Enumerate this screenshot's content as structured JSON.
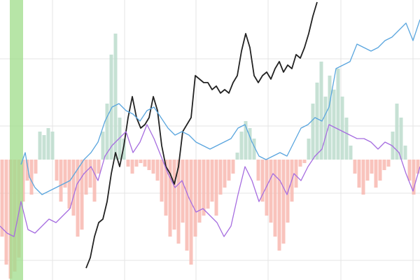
{
  "chart_data": {
    "type": "bar-line",
    "xlim": [
      0,
      600
    ],
    "ylim": [
      -172,
      228
    ],
    "xticks": [
      75,
      178,
      280,
      383,
      487,
      590
    ],
    "yticks": [
      -144,
      -48,
      48,
      144
    ],
    "grid": true,
    "band": {
      "x": [
        14,
        33
      ],
      "color": "#9fdc8a"
    },
    "bars": {
      "color_pos": "#bcdccd",
      "color_neg": "#f8b8b0",
      "x": [
        3,
        9,
        15,
        21,
        27,
        33,
        39,
        45,
        51,
        57,
        63,
        69,
        75,
        81,
        87,
        93,
        99,
        105,
        111,
        117,
        123,
        129,
        135,
        141,
        147,
        153,
        159,
        165,
        171,
        177,
        183,
        189,
        195,
        201,
        207,
        213,
        219,
        225,
        231,
        237,
        243,
        249,
        255,
        261,
        267,
        273,
        279,
        285,
        291,
        297,
        303,
        309,
        315,
        321,
        327,
        333,
        339,
        345,
        351,
        357,
        363,
        369,
        375,
        381,
        387,
        393,
        399,
        405,
        411,
        417,
        423,
        429,
        435,
        441,
        447,
        453,
        459,
        465,
        471,
        477,
        483,
        489,
        495,
        501,
        507,
        513,
        519,
        525,
        531,
        537,
        543,
        549,
        555,
        561,
        567,
        573,
        579,
        585,
        591,
        597
      ],
      "values": [
        -110,
        -150,
        -170,
        -160,
        -140,
        -60,
        -30,
        -50,
        -20,
        40,
        35,
        45,
        40,
        -30,
        -60,
        -40,
        -70,
        -80,
        -110,
        -100,
        -50,
        -40,
        -60,
        -20,
        40,
        80,
        150,
        180,
        60,
        30,
        -10,
        -20,
        -10,
        -5,
        -10,
        -15,
        -20,
        -30,
        -60,
        -80,
        -110,
        -100,
        -120,
        -90,
        -130,
        -150,
        -110,
        -90,
        -80,
        -70,
        -60,
        -80,
        -50,
        -40,
        -30,
        -20,
        10,
        40,
        55,
        45,
        30,
        -30,
        -60,
        -80,
        -90,
        -110,
        -130,
        -120,
        -90,
        -60,
        -40,
        -10,
        -5,
        30,
        80,
        110,
        140,
        90,
        120,
        100,
        130,
        90,
        60,
        20,
        -20,
        -40,
        -50,
        -30,
        -20,
        -40,
        -30,
        -15,
        -10,
        40,
        80,
        60,
        20,
        -30,
        -50,
        -20
      ]
    },
    "lines": [
      {
        "color": "#222222",
        "x": [
          123,
          129,
          135,
          141,
          147,
          153,
          159,
          165,
          171,
          177,
          183,
          189,
          195,
          201,
          207,
          213,
          219,
          225,
          231,
          237,
          243,
          249,
          255,
          261,
          267,
          273,
          279,
          285,
          291,
          297,
          303,
          309,
          315,
          321,
          327,
          333,
          339,
          345,
          351,
          357,
          363,
          369,
          375,
          381,
          387,
          393,
          399,
          405,
          411,
          417,
          423,
          429,
          435,
          441,
          447,
          453
        ],
        "values": [
          -155,
          -140,
          -110,
          -90,
          -85,
          -60,
          -20,
          10,
          -10,
          20,
          60,
          90,
          60,
          45,
          50,
          60,
          90,
          70,
          20,
          -10,
          -20,
          -35,
          -10,
          40,
          50,
          60,
          120,
          115,
          110,
          110,
          100,
          105,
          95,
          100,
          95,
          110,
          120,
          155,
          180,
          160,
          120,
          110,
          120,
          125,
          115,
          130,
          140,
          125,
          135,
          130,
          150,
          145,
          160,
          180,
          205,
          225
        ]
      },
      {
        "color": "#5aa6de",
        "x": [
          30,
          36,
          42,
          50,
          60,
          70,
          80,
          90,
          100,
          110,
          120,
          130,
          140,
          150,
          160,
          170,
          180,
          190,
          200,
          210,
          220,
          230,
          240,
          250,
          260,
          270,
          280,
          290,
          300,
          310,
          320,
          330,
          340,
          350,
          360,
          370,
          380,
          390,
          400,
          410,
          420,
          430,
          440,
          450,
          460,
          470,
          480,
          490,
          500,
          510,
          520,
          530,
          540,
          550,
          560,
          570,
          580,
          590,
          600
        ],
        "values": [
          -7,
          10,
          -25,
          -40,
          -50,
          -45,
          -40,
          -35,
          -30,
          -15,
          0,
          10,
          25,
          55,
          75,
          80,
          70,
          65,
          55,
          70,
          75,
          60,
          45,
          35,
          40,
          35,
          25,
          20,
          15,
          20,
          25,
          30,
          45,
          50,
          25,
          5,
          0,
          5,
          10,
          5,
          25,
          45,
          50,
          60,
          55,
          75,
          130,
          135,
          140,
          165,
          160,
          155,
          160,
          170,
          175,
          185,
          195,
          170,
          200
        ]
      },
      {
        "color": "#a66de0",
        "x": [
          0,
          10,
          20,
          30,
          40,
          50,
          60,
          70,
          80,
          90,
          100,
          110,
          120,
          130,
          140,
          150,
          160,
          170,
          180,
          190,
          200,
          210,
          220,
          230,
          240,
          250,
          260,
          270,
          280,
          290,
          300,
          310,
          320,
          330,
          340,
          350,
          360,
          370,
          380,
          390,
          400,
          410,
          420,
          430,
          440,
          450,
          460,
          470,
          480,
          490,
          500,
          510,
          520,
          530,
          540,
          550,
          560,
          570,
          580,
          590,
          600
        ],
        "values": [
          -95,
          -105,
          -110,
          -60,
          -100,
          -105,
          -95,
          -85,
          -90,
          -80,
          -70,
          -35,
          -20,
          -10,
          -30,
          5,
          20,
          30,
          40,
          10,
          25,
          50,
          30,
          5,
          -20,
          -40,
          -30,
          -55,
          -75,
          -70,
          -80,
          -90,
          -110,
          -95,
          -50,
          -10,
          -30,
          -60,
          -40,
          -20,
          -30,
          -50,
          -20,
          -30,
          -10,
          5,
          15,
          50,
          45,
          40,
          35,
          30,
          30,
          25,
          15,
          25,
          20,
          10,
          -20,
          -45,
          -10
        ]
      }
    ]
  }
}
